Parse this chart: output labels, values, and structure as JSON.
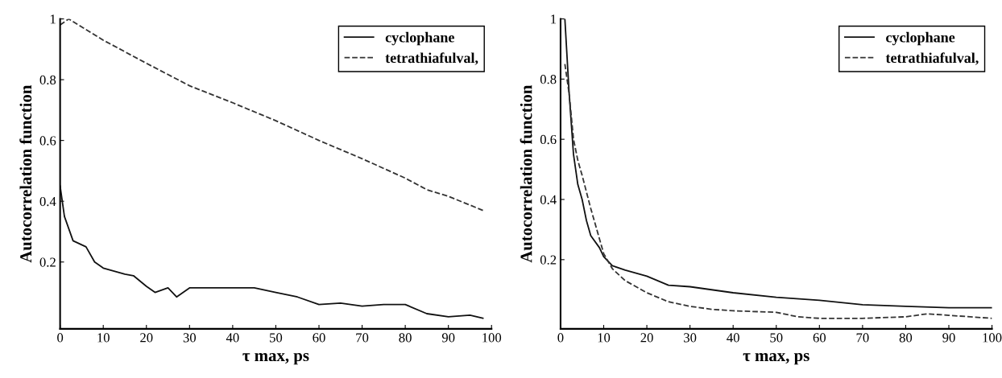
{
  "chart_data": [
    {
      "type": "line",
      "xlabel": "τ max, ps",
      "ylabel": "Autocorrelation function",
      "xlim": [
        0,
        100
      ],
      "ylim": [
        -0.02,
        1
      ],
      "xticks": [
        0,
        10,
        20,
        30,
        40,
        50,
        60,
        70,
        80,
        90,
        100
      ],
      "yticks": [
        0.2,
        0.4,
        0.6,
        0.8,
        1
      ],
      "grid": false,
      "legend": "top right",
      "series": [
        {
          "name": "cyclophane",
          "color": "#111111",
          "line_style": "solid",
          "x": [
            0,
            1,
            3,
            6,
            8,
            10,
            15,
            17,
            20,
            22,
            25,
            27,
            30,
            40,
            45,
            50,
            55,
            60,
            65,
            70,
            75,
            80,
            85,
            90,
            95,
            98
          ],
          "values": [
            0.45,
            0.35,
            0.27,
            0.25,
            0.2,
            0.18,
            0.16,
            0.155,
            0.12,
            0.1,
            0.115,
            0.085,
            0.115,
            0.115,
            0.115,
            0.1,
            0.085,
            0.06,
            0.065,
            0.055,
            0.06,
            0.06,
            0.03,
            0.02,
            0.025,
            0.015
          ]
        },
        {
          "name": "tetrathiafulval,",
          "color": "#333333",
          "line_style": "dashed",
          "x": [
            0,
            2,
            10,
            20,
            30,
            40,
            50,
            60,
            70,
            80,
            85,
            90,
            98
          ],
          "values": [
            0.98,
            1.0,
            0.93,
            0.854,
            0.78,
            0.724,
            0.665,
            0.6,
            0.54,
            0.476,
            0.438,
            0.416,
            0.37
          ]
        }
      ]
    },
    {
      "type": "line",
      "xlabel": "τ max, ps",
      "ylabel": "Autocorrelation function",
      "xlim": [
        0,
        100
      ],
      "ylim": [
        -0.03,
        1
      ],
      "xticks": [
        0,
        10,
        20,
        30,
        40,
        50,
        60,
        70,
        80,
        90,
        100
      ],
      "yticks": [
        0.2,
        0.4,
        0.6,
        0.8,
        1
      ],
      "grid": false,
      "legend": "top right",
      "series": [
        {
          "name": "cyclophane",
          "color": "#111111",
          "line_style": "solid",
          "x": [
            1,
            2,
            3,
            4,
            5,
            6,
            7,
            9,
            10,
            12,
            15,
            20,
            25,
            30,
            40,
            50,
            60,
            70,
            80,
            90,
            100
          ],
          "values": [
            1.0,
            0.75,
            0.55,
            0.45,
            0.4,
            0.33,
            0.28,
            0.24,
            0.21,
            0.18,
            0.165,
            0.145,
            0.115,
            0.11,
            0.09,
            0.075,
            0.065,
            0.05,
            0.045,
            0.04,
            0.04
          ]
        },
        {
          "name": "tetrathiafulval,",
          "color": "#333333",
          "line_style": "dashed",
          "x": [
            1,
            2,
            3,
            4,
            5,
            7,
            9,
            10,
            12,
            15,
            20,
            25,
            30,
            35,
            40,
            50,
            55,
            60,
            70,
            80,
            85,
            90,
            100
          ],
          "values": [
            0.85,
            0.75,
            0.6,
            0.53,
            0.48,
            0.37,
            0.27,
            0.22,
            0.17,
            0.13,
            0.09,
            0.06,
            0.045,
            0.035,
            0.03,
            0.025,
            0.01,
            0.005,
            0.005,
            0.01,
            0.02,
            0.015,
            0.005
          ]
        }
      ]
    }
  ]
}
